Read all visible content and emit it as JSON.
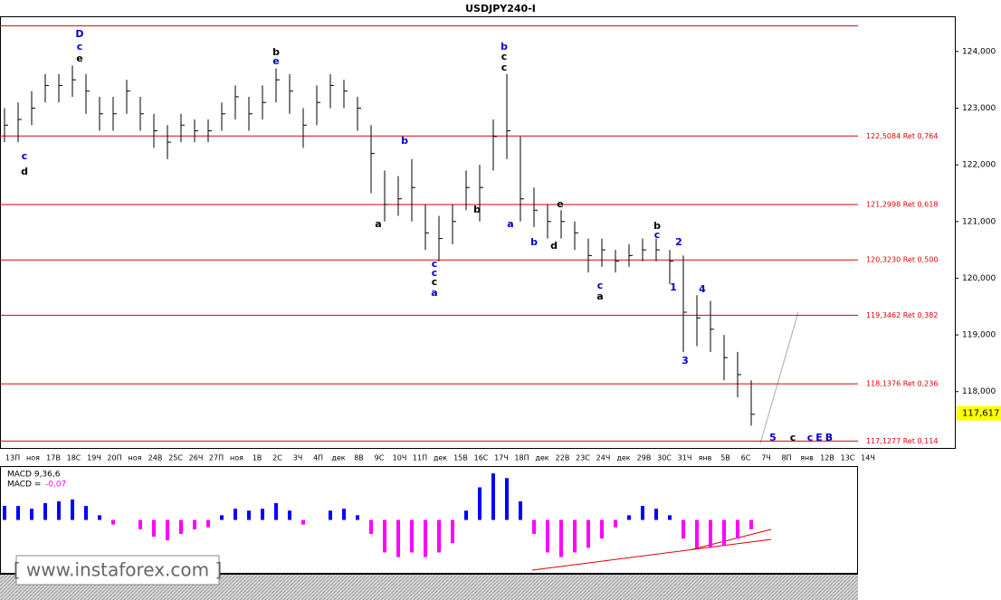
{
  "chart_data": {
    "type": "ohlc",
    "title": "USDJPY240-I",
    "ylim": [
      116.99,
      124.62
    ],
    "yticks": [
      {
        "value": 118,
        "label": "118,000"
      },
      {
        "value": 119,
        "label": "119,000"
      },
      {
        "value": 120,
        "label": "120,000"
      },
      {
        "value": 121,
        "label": "121,000"
      },
      {
        "value": 122,
        "label": "122,000"
      },
      {
        "value": 123,
        "label": "123,000"
      },
      {
        "value": 124,
        "label": "124,000"
      }
    ],
    "current_price": {
      "value": 117.617,
      "label": "117,617"
    },
    "top_line": 124.45,
    "levels": [
      {
        "value": 122.5084,
        "label": "122,5084 Ret 0,764"
      },
      {
        "value": 121.2998,
        "label": "121,2998 Ret 0,618"
      },
      {
        "value": 120.323,
        "label": "120,3230 Ret 0,500"
      },
      {
        "value": 119.3462,
        "label": "119,3462 Ret 0,382"
      },
      {
        "value": 118.1376,
        "label": "118,1376 Ret 0,236"
      },
      {
        "value": 117.1277,
        "label": "117,1277 Ret 0,114"
      }
    ],
    "level_color": "#e00000",
    "bar_color": "#000000",
    "x_labels": [
      "13П",
      "ноя",
      "17В",
      "18С",
      "19Ч",
      "20П",
      "ноя",
      "24В",
      "25С",
      "26Ч",
      "27П",
      "ноя",
      "1В",
      "2С",
      "3Ч",
      "4П",
      "дек",
      "8В",
      "9С",
      "10Ч",
      "11П",
      "дек",
      "15В",
      "16С",
      "17Ч",
      "18П",
      "дек",
      "22В",
      "23С",
      "24Ч",
      "дек",
      "29В",
      "30С",
      "31Ч",
      "янв",
      "5В",
      "6С",
      "7Ч",
      "8П",
      "янв",
      "12В",
      "13С",
      "14Ч"
    ],
    "bars": {
      "high": [
        123.0,
        123.1,
        123.3,
        123.6,
        123.6,
        123.75,
        123.6,
        123.2,
        123.2,
        123.5,
        123.2,
        122.9,
        122.7,
        122.9,
        122.8,
        122.8,
        123.1,
        123.4,
        123.2,
        123.4,
        123.7,
        123.6,
        123.0,
        123.4,
        123.6,
        123.5,
        123.2,
        122.7,
        121.9,
        121.8,
        122.1,
        121.3,
        121.1,
        121.3,
        121.9,
        122.0,
        122.8,
        123.6,
        122.5,
        121.6,
        121.3,
        121.2,
        121.0,
        120.7,
        120.7,
        120.5,
        120.6,
        120.7,
        120.7,
        120.5,
        120.4,
        119.7,
        119.6,
        119.0,
        118.7,
        118.2
      ],
      "low": [
        122.4,
        122.4,
        122.7,
        123.1,
        123.1,
        123.2,
        122.9,
        122.6,
        122.6,
        122.9,
        122.6,
        122.3,
        122.1,
        122.4,
        122.4,
        122.4,
        122.6,
        122.8,
        122.6,
        122.8,
        123.1,
        122.9,
        122.3,
        122.7,
        123.0,
        123.0,
        122.6,
        121.5,
        121.0,
        121.1,
        121.0,
        120.5,
        120.3,
        120.6,
        121.2,
        121.0,
        121.9,
        122.1,
        121.0,
        120.9,
        120.7,
        120.7,
        120.5,
        120.1,
        120.2,
        120.1,
        120.2,
        120.3,
        120.3,
        119.9,
        118.7,
        118.8,
        118.7,
        118.2,
        117.9,
        117.4
      ],
      "close": [
        122.7,
        122.8,
        123.0,
        123.4,
        123.4,
        123.5,
        123.3,
        122.9,
        122.9,
        123.3,
        122.9,
        122.6,
        122.4,
        122.7,
        122.6,
        122.6,
        122.9,
        123.2,
        122.9,
        123.1,
        123.5,
        123.3,
        122.7,
        123.1,
        123.4,
        123.3,
        123.0,
        122.2,
        121.3,
        121.4,
        121.6,
        120.8,
        120.7,
        121.0,
        121.6,
        121.6,
        122.5,
        122.6,
        121.4,
        121.2,
        121.0,
        121.0,
        120.8,
        120.4,
        120.5,
        120.3,
        120.4,
        120.5,
        120.5,
        120.3,
        119.4,
        119.3,
        119.1,
        118.6,
        118.3,
        117.6
      ]
    },
    "wave_labels": [
      {
        "text": "D",
        "color": "#0000cc"
      },
      {
        "text": "c",
        "color": "#0000cc"
      },
      {
        "text": "e",
        "color": "#000000"
      },
      {
        "text": "c",
        "color": "#0000cc"
      },
      {
        "text": "d",
        "color": "#000000"
      },
      {
        "text": "b",
        "color": "#000000"
      },
      {
        "text": "e",
        "color": "#0000cc"
      },
      {
        "text": "b",
        "color": "#0000cc"
      },
      {
        "text": "c",
        "color": "#000000"
      },
      {
        "text": "c",
        "color": "#000000"
      },
      {
        "text": "b",
        "color": "#0000cc"
      },
      {
        "text": "a",
        "color": "#000000"
      },
      {
        "text": "c",
        "color": "#0000cc"
      },
      {
        "text": "c",
        "color": "#0000cc"
      },
      {
        "text": "c",
        "color": "#000000"
      },
      {
        "text": "a",
        "color": "#0000cc"
      },
      {
        "text": "b",
        "color": "#000000"
      },
      {
        "text": "a",
        "color": "#0000cc"
      },
      {
        "text": "b",
        "color": "#0000cc"
      },
      {
        "text": "d",
        "color": "#000000"
      },
      {
        "text": "e",
        "color": "#000000"
      },
      {
        "text": "c",
        "color": "#0000cc"
      },
      {
        "text": "a",
        "color": "#000000"
      },
      {
        "text": "b",
        "color": "#000000"
      },
      {
        "text": "c",
        "color": "#0000cc"
      },
      {
        "text": "2",
        "color": "#0000cc"
      },
      {
        "text": "1",
        "color": "#0000cc"
      },
      {
        "text": "3",
        "color": "#0000cc"
      },
      {
        "text": "4",
        "color": "#0000cc"
      },
      {
        "text": "5",
        "color": "#0000cc"
      },
      {
        "text": "c",
        "color": "#000000"
      },
      {
        "text": "c",
        "color": "#0000cc"
      },
      {
        "text": "E",
        "color": "#0000cc"
      },
      {
        "text": "B",
        "color": "#0000cc"
      }
    ],
    "macd": {
      "title": "MACD 9,36,6",
      "readout_label": "MACD =",
      "readout": {
        "value": -0.07,
        "label": "-0,07"
      },
      "ylim": [
        -0.55,
        0.55
      ],
      "positive_color": "#0000ff",
      "negative_color": "#ff00ff",
      "values": [
        0.15,
        0.15,
        0.12,
        0.18,
        0.2,
        0.22,
        0.15,
        0.05,
        -0.05,
        0.0,
        -0.1,
        -0.18,
        -0.22,
        -0.15,
        -0.1,
        -0.08,
        0.05,
        0.12,
        0.1,
        0.12,
        0.18,
        0.1,
        -0.05,
        0.0,
        0.1,
        0.12,
        0.05,
        -0.15,
        -0.35,
        -0.4,
        -0.35,
        -0.4,
        -0.35,
        -0.25,
        0.1,
        0.35,
        0.5,
        0.45,
        0.2,
        -0.15,
        -0.35,
        -0.4,
        -0.35,
        -0.3,
        -0.2,
        -0.08,
        0.05,
        0.15,
        0.12,
        0.05,
        -0.2,
        -0.3,
        -0.3,
        -0.28,
        -0.2,
        -0.1
      ]
    },
    "watermark": "[ www.instaforex.com ]"
  }
}
